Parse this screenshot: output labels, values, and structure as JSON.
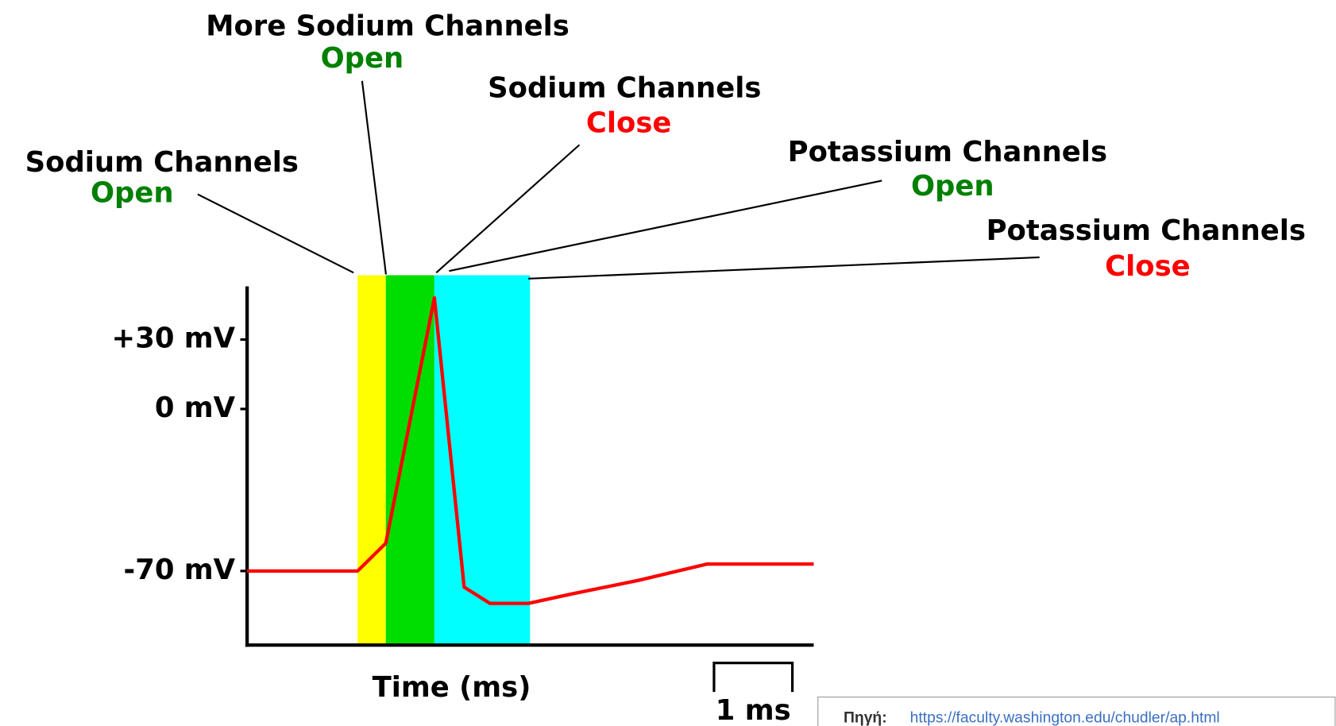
{
  "chart_data": {
    "type": "line",
    "x_label": "Time (ms)",
    "xlim": [
      0,
      7.23
    ],
    "ylim": [
      -102,
      53
    ],
    "yticks": [
      {
        "value": 30,
        "label": "+30 mV"
      },
      {
        "value": 0,
        "label": "0 mV"
      },
      {
        "value": -70,
        "label": "-70 mV"
      }
    ],
    "x": [
      0,
      1.41,
      1.77,
      2.39,
      2.77,
      3.1,
      3.59,
      4.13,
      5.0,
      5.87,
      7.23
    ],
    "series": [
      {
        "color": "#ff0000",
        "values": [
          -70,
          -70,
          -58,
          48,
          -77,
          -84,
          -84,
          -80,
          -74,
          -67,
          -67
        ]
      }
    ],
    "regions": [
      {
        "start": 1.41,
        "end": 1.77,
        "color": "#ffff00"
      },
      {
        "start": 1.77,
        "end": 2.39,
        "color": "#00dd00"
      },
      {
        "start": 2.39,
        "end": 3.61,
        "color": "#00ffff"
      }
    ],
    "annotations": [
      {
        "text": "More Sodium Channels",
        "state": "Open",
        "color": "#008000"
      },
      {
        "text": "Sodium Channels",
        "state": "Close",
        "color": "#ff0000"
      },
      {
        "text": "Sodium Channels",
        "state": "Open",
        "color": "#008000"
      },
      {
        "text": "Potassium Channels",
        "state": "Open",
        "color": "#008000"
      },
      {
        "text": "Potassium Channels",
        "state": "Close",
        "color": "#ff0000"
      }
    ],
    "scale_bar": {
      "length": 1,
      "label": "1 ms"
    }
  },
  "source": {
    "label": "Πηγή:",
    "url": "https://faculty.washington.edu/chudler/ap.html"
  }
}
